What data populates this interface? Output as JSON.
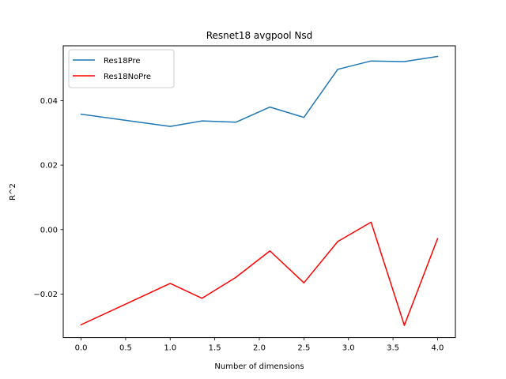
{
  "chart_data": {
    "type": "line",
    "title": "Resnet18 avgpool Nsd",
    "xlabel": "Number of dimensions",
    "ylabel": "R^2",
    "xlim": [
      -0.2,
      4.2
    ],
    "ylim": [
      -0.0335,
      0.057
    ],
    "xticks": [
      0.0,
      0.5,
      1.0,
      1.5,
      2.0,
      2.5,
      3.0,
      3.5,
      4.0
    ],
    "xtick_labels": [
      "0.0",
      "0.5",
      "1.0",
      "1.5",
      "2.0",
      "2.5",
      "3.0",
      "3.5",
      "4.0"
    ],
    "yticks": [
      -0.02,
      0.0,
      0.02,
      0.04
    ],
    "ytick_labels": [
      "−0.02",
      "0.00",
      "0.02",
      "0.04"
    ],
    "grid": false,
    "legend_position": "upper-left",
    "series": [
      {
        "name": "Res18Pre",
        "color": "#1f77b4",
        "x": [
          0.0,
          1.0,
          1.357,
          1.737,
          2.119,
          2.5,
          2.88,
          3.254,
          3.627,
          4.0
        ],
        "y": [
          0.0358,
          0.032,
          0.0337,
          0.0333,
          0.038,
          0.0348,
          0.0497,
          0.0523,
          0.0521,
          0.0537
        ]
      },
      {
        "name": "Res18NoPre",
        "color": "#ff0000",
        "x": [
          0.0,
          1.0,
          1.357,
          1.737,
          2.119,
          2.5,
          2.88,
          3.254,
          3.627,
          4.0
        ],
        "y": [
          -0.0295,
          -0.0167,
          -0.0213,
          -0.0148,
          -0.0066,
          -0.0165,
          -0.0037,
          0.0023,
          -0.0297,
          -0.0028
        ]
      }
    ]
  }
}
